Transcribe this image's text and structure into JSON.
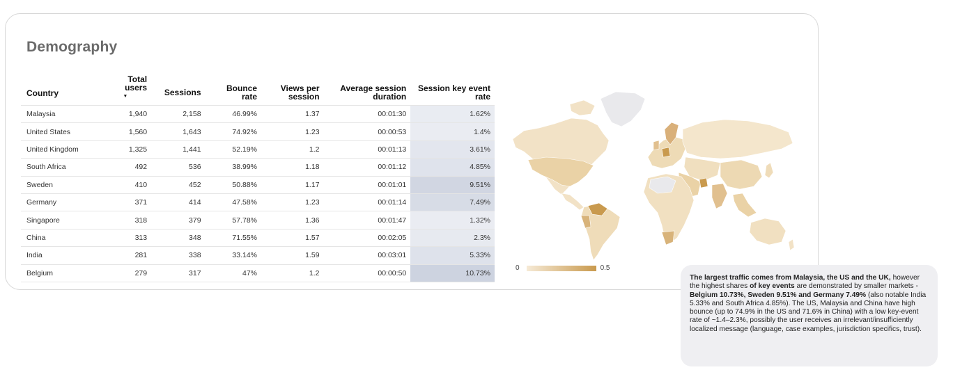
{
  "title": "Demography",
  "table": {
    "columns": {
      "country": "Country",
      "total_users": "Total users",
      "sort_indicator": "▾",
      "sessions": "Sessions",
      "bounce_rate": "Bounce rate",
      "views_per_session": "Views per session",
      "avg_session_duration": "Average session duration",
      "session_key_event_rate": "Session key event rate"
    },
    "rows": [
      {
        "country": "Malaysia",
        "users": "1,940",
        "sessions": "2,158",
        "bounce": "46.99%",
        "views": "1.37",
        "duration": "00:01:30",
        "rate": "1.62%",
        "rate_value": 1.62
      },
      {
        "country": "United States",
        "users": "1,560",
        "sessions": "1,643",
        "bounce": "74.92%",
        "views": "1.23",
        "duration": "00:00:53",
        "rate": "1.4%",
        "rate_value": 1.4
      },
      {
        "country": "United Kingdom",
        "users": "1,325",
        "sessions": "1,441",
        "bounce": "52.19%",
        "views": "1.2",
        "duration": "00:01:13",
        "rate": "3.61%",
        "rate_value": 3.61
      },
      {
        "country": "South Africa",
        "users": "492",
        "sessions": "536",
        "bounce": "38.99%",
        "views": "1.18",
        "duration": "00:01:12",
        "rate": "4.85%",
        "rate_value": 4.85
      },
      {
        "country": "Sweden",
        "users": "410",
        "sessions": "452",
        "bounce": "50.88%",
        "views": "1.17",
        "duration": "00:01:01",
        "rate": "9.51%",
        "rate_value": 9.51
      },
      {
        "country": "Germany",
        "users": "371",
        "sessions": "414",
        "bounce": "47.58%",
        "views": "1.23",
        "duration": "00:01:14",
        "rate": "7.49%",
        "rate_value": 7.49
      },
      {
        "country": "Singapore",
        "users": "318",
        "sessions": "379",
        "bounce": "57.78%",
        "views": "1.36",
        "duration": "00:01:47",
        "rate": "1.32%",
        "rate_value": 1.32
      },
      {
        "country": "China",
        "users": "313",
        "sessions": "348",
        "bounce": "71.55%",
        "views": "1.57",
        "duration": "00:02:05",
        "rate": "2.3%",
        "rate_value": 2.3
      },
      {
        "country": "India",
        "users": "281",
        "sessions": "338",
        "bounce": "33.14%",
        "views": "1.59",
        "duration": "00:03:01",
        "rate": "5.33%",
        "rate_value": 5.33
      },
      {
        "country": "Belgium",
        "users": "279",
        "sessions": "317",
        "bounce": "47%",
        "views": "1.2",
        "duration": "00:00:50",
        "rate": "10.73%",
        "rate_value": 10.73
      }
    ]
  },
  "map": {
    "legend_min": "0",
    "legend_max": "0.5",
    "color_low": "#f6ead6",
    "color_high": "#c99a4e",
    "no_data_color": "#e9e9ec"
  },
  "note": {
    "p1_bold": "The largest traffic comes from Malaysia, the US and the UK,",
    "p2": " however the highest shares ",
    "p3_bold": "of key events",
    "p4": " are demonstrated by smaller markets -  ",
    "p5_bold": "Belgium 10.73%, Sweden 9.51% and Germany 7.49%",
    "p6": " (also notable India 5.33% and South Africa 4.85%). The US, Malaysia and China have high bounce (up to 74.9% in the US and 71.6% in China) with a low key-event rate of ~1.4–2.3%, possibly the user receives an irrelevant/insufficiently localized message (language, case examples, jurisdiction specifics, trust)."
  },
  "colors": {
    "rate_bg_low": "#eef0f5",
    "rate_bg_high": "#cdd3e0",
    "title": "#6b6b6b"
  }
}
